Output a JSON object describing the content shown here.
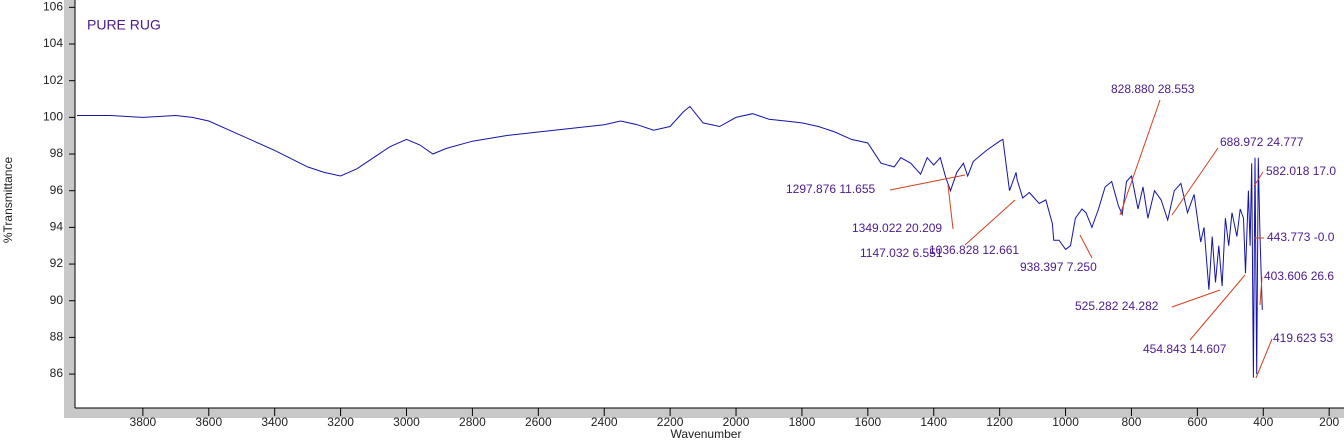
{
  "chart_data": {
    "type": "line",
    "title": "PURE RUG",
    "x_label": "Wavenumber",
    "y_label": "%Transmittance",
    "xlim": [
      4006,
      155
    ],
    "ylim": [
      84.15,
      106.4
    ],
    "xticks": [
      3800,
      3600,
      3400,
      3200,
      3000,
      2800,
      2600,
      2400,
      2200,
      2000,
      1800,
      1600,
      1400,
      1200,
      1000,
      800,
      600,
      400,
      200
    ],
    "yticks": [
      86,
      88,
      90,
      92,
      94,
      96,
      98,
      100,
      102,
      104,
      106
    ],
    "series": [
      {
        "name": "PURE RUG",
        "color": "#1414a8",
        "x": [
          4000,
          3900,
          3800,
          3700,
          3650,
          3600,
          3500,
          3400,
          3300,
          3250,
          3200,
          3150,
          3100,
          3050,
          3000,
          2960,
          2920,
          2880,
          2800,
          2700,
          2600,
          2500,
          2400,
          2350,
          2300,
          2250,
          2200,
          2160,
          2140,
          2100,
          2050,
          2000,
          1950,
          1900,
          1850,
          1800,
          1750,
          1700,
          1650,
          1600,
          1560,
          1520,
          1500,
          1470,
          1440,
          1420,
          1400,
          1380,
          1365,
          1349,
          1330,
          1310,
          1297,
          1280,
          1240,
          1200,
          1190,
          1170,
          1150,
          1147,
          1130,
          1110,
          1080,
          1060,
          1040,
          1036,
          1020,
          1000,
          985,
          970,
          950,
          938,
          920,
          900,
          880,
          860,
          840,
          828,
          815,
          800,
          780,
          765,
          750,
          730,
          710,
          690,
          670,
          650,
          630,
          610,
          590,
          580,
          565,
          555,
          545,
          535,
          525,
          515,
          505,
          495,
          480,
          470,
          460,
          454,
          445,
          440,
          435,
          430,
          425,
          420,
          415,
          410,
          403
        ],
        "values": [
          100.1,
          100.1,
          100.0,
          100.1,
          100.0,
          99.8,
          99.0,
          98.2,
          97.3,
          97.0,
          96.8,
          97.2,
          97.8,
          98.4,
          98.8,
          98.5,
          98.0,
          98.3,
          98.7,
          99.0,
          99.2,
          99.4,
          99.6,
          99.8,
          99.6,
          99.3,
          99.5,
          100.3,
          100.6,
          99.7,
          99.5,
          100.0,
          100.2,
          99.9,
          99.8,
          99.7,
          99.5,
          99.2,
          98.8,
          98.6,
          97.5,
          97.3,
          97.8,
          97.5,
          96.9,
          97.8,
          97.4,
          97.8,
          96.8,
          96.0,
          97.0,
          97.5,
          96.8,
          97.6,
          98.2,
          98.7,
          98.8,
          96.0,
          97.0,
          96.6,
          95.6,
          95.9,
          95.3,
          95.5,
          94.2,
          93.3,
          93.3,
          92.8,
          93.0,
          94.5,
          95.0,
          94.8,
          94.0,
          95.0,
          96.2,
          96.5,
          95.2,
          94.7,
          96.5,
          96.8,
          95.0,
          96.2,
          94.5,
          96.0,
          95.5,
          94.4,
          96.0,
          96.4,
          94.8,
          95.8,
          93.2,
          94.0,
          90.6,
          93.5,
          91.0,
          93.0,
          90.8,
          94.5,
          93.0,
          94.8,
          93.5,
          95.0,
          94.5,
          91.5,
          96.0,
          93.0,
          97.5,
          85.8,
          97.8,
          86.0,
          97.8,
          93.5,
          89.5
        ]
      }
    ],
    "annotations": [
      "828.880  28.553",
      "688.972  24.777",
      "582.018  17.0",
      "443.773  -0.0",
      "403.606  26.6",
      "419.623  53",
      "1297.876  11.655",
      "1349.022  20.209",
      "1147.032  6.551",
      "1036.828  12.661",
      "938.397  7.250",
      "525.282  24.282",
      "454.843  14.607"
    ]
  }
}
